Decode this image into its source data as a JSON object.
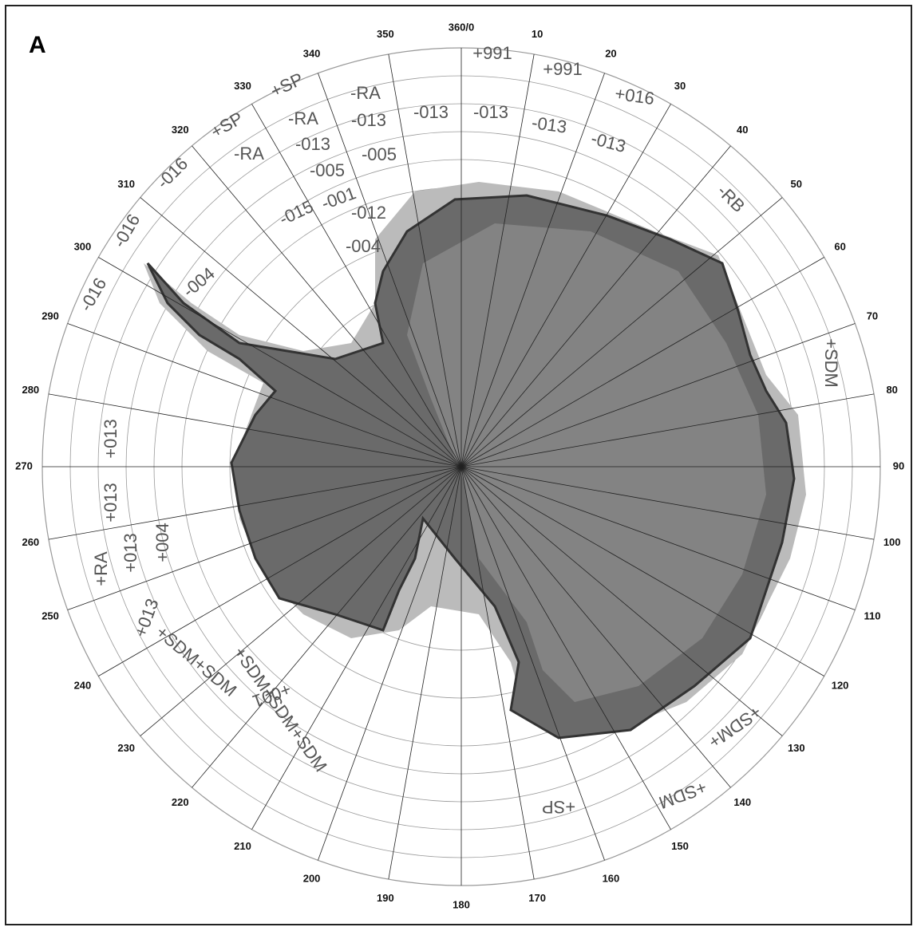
{
  "panel_label": "A",
  "degree_labels": [
    "360/0",
    "10",
    "20",
    "30",
    "40",
    "50",
    "60",
    "70",
    "80",
    "90",
    "100",
    "110",
    "120",
    "130",
    "140",
    "150",
    "160",
    "170",
    "180",
    "190",
    "200",
    "210",
    "220",
    "230",
    "240",
    "250",
    "260",
    "270",
    "280",
    "290",
    "300",
    "310",
    "320",
    "330",
    "340",
    "350"
  ],
  "annotations": [
    "+991",
    "+991",
    "+016",
    "-RA",
    "+SP",
    "-RA",
    "-013",
    "-013",
    "-013",
    "-013",
    "-013",
    "+SP",
    "-RA",
    "-013",
    "-005",
    "-005",
    "-001",
    "-012",
    "-015",
    "-004",
    "-016",
    "-016",
    "-004",
    "-016",
    "-RB",
    "+SDM",
    "+013",
    "+013",
    "+RA",
    "+013",
    "+004",
    "+013",
    "+SDM+SDM",
    "+SDM+SDM+SDM",
    "+001",
    "+SP",
    "+SDM",
    "+SDM+"
  ]
}
